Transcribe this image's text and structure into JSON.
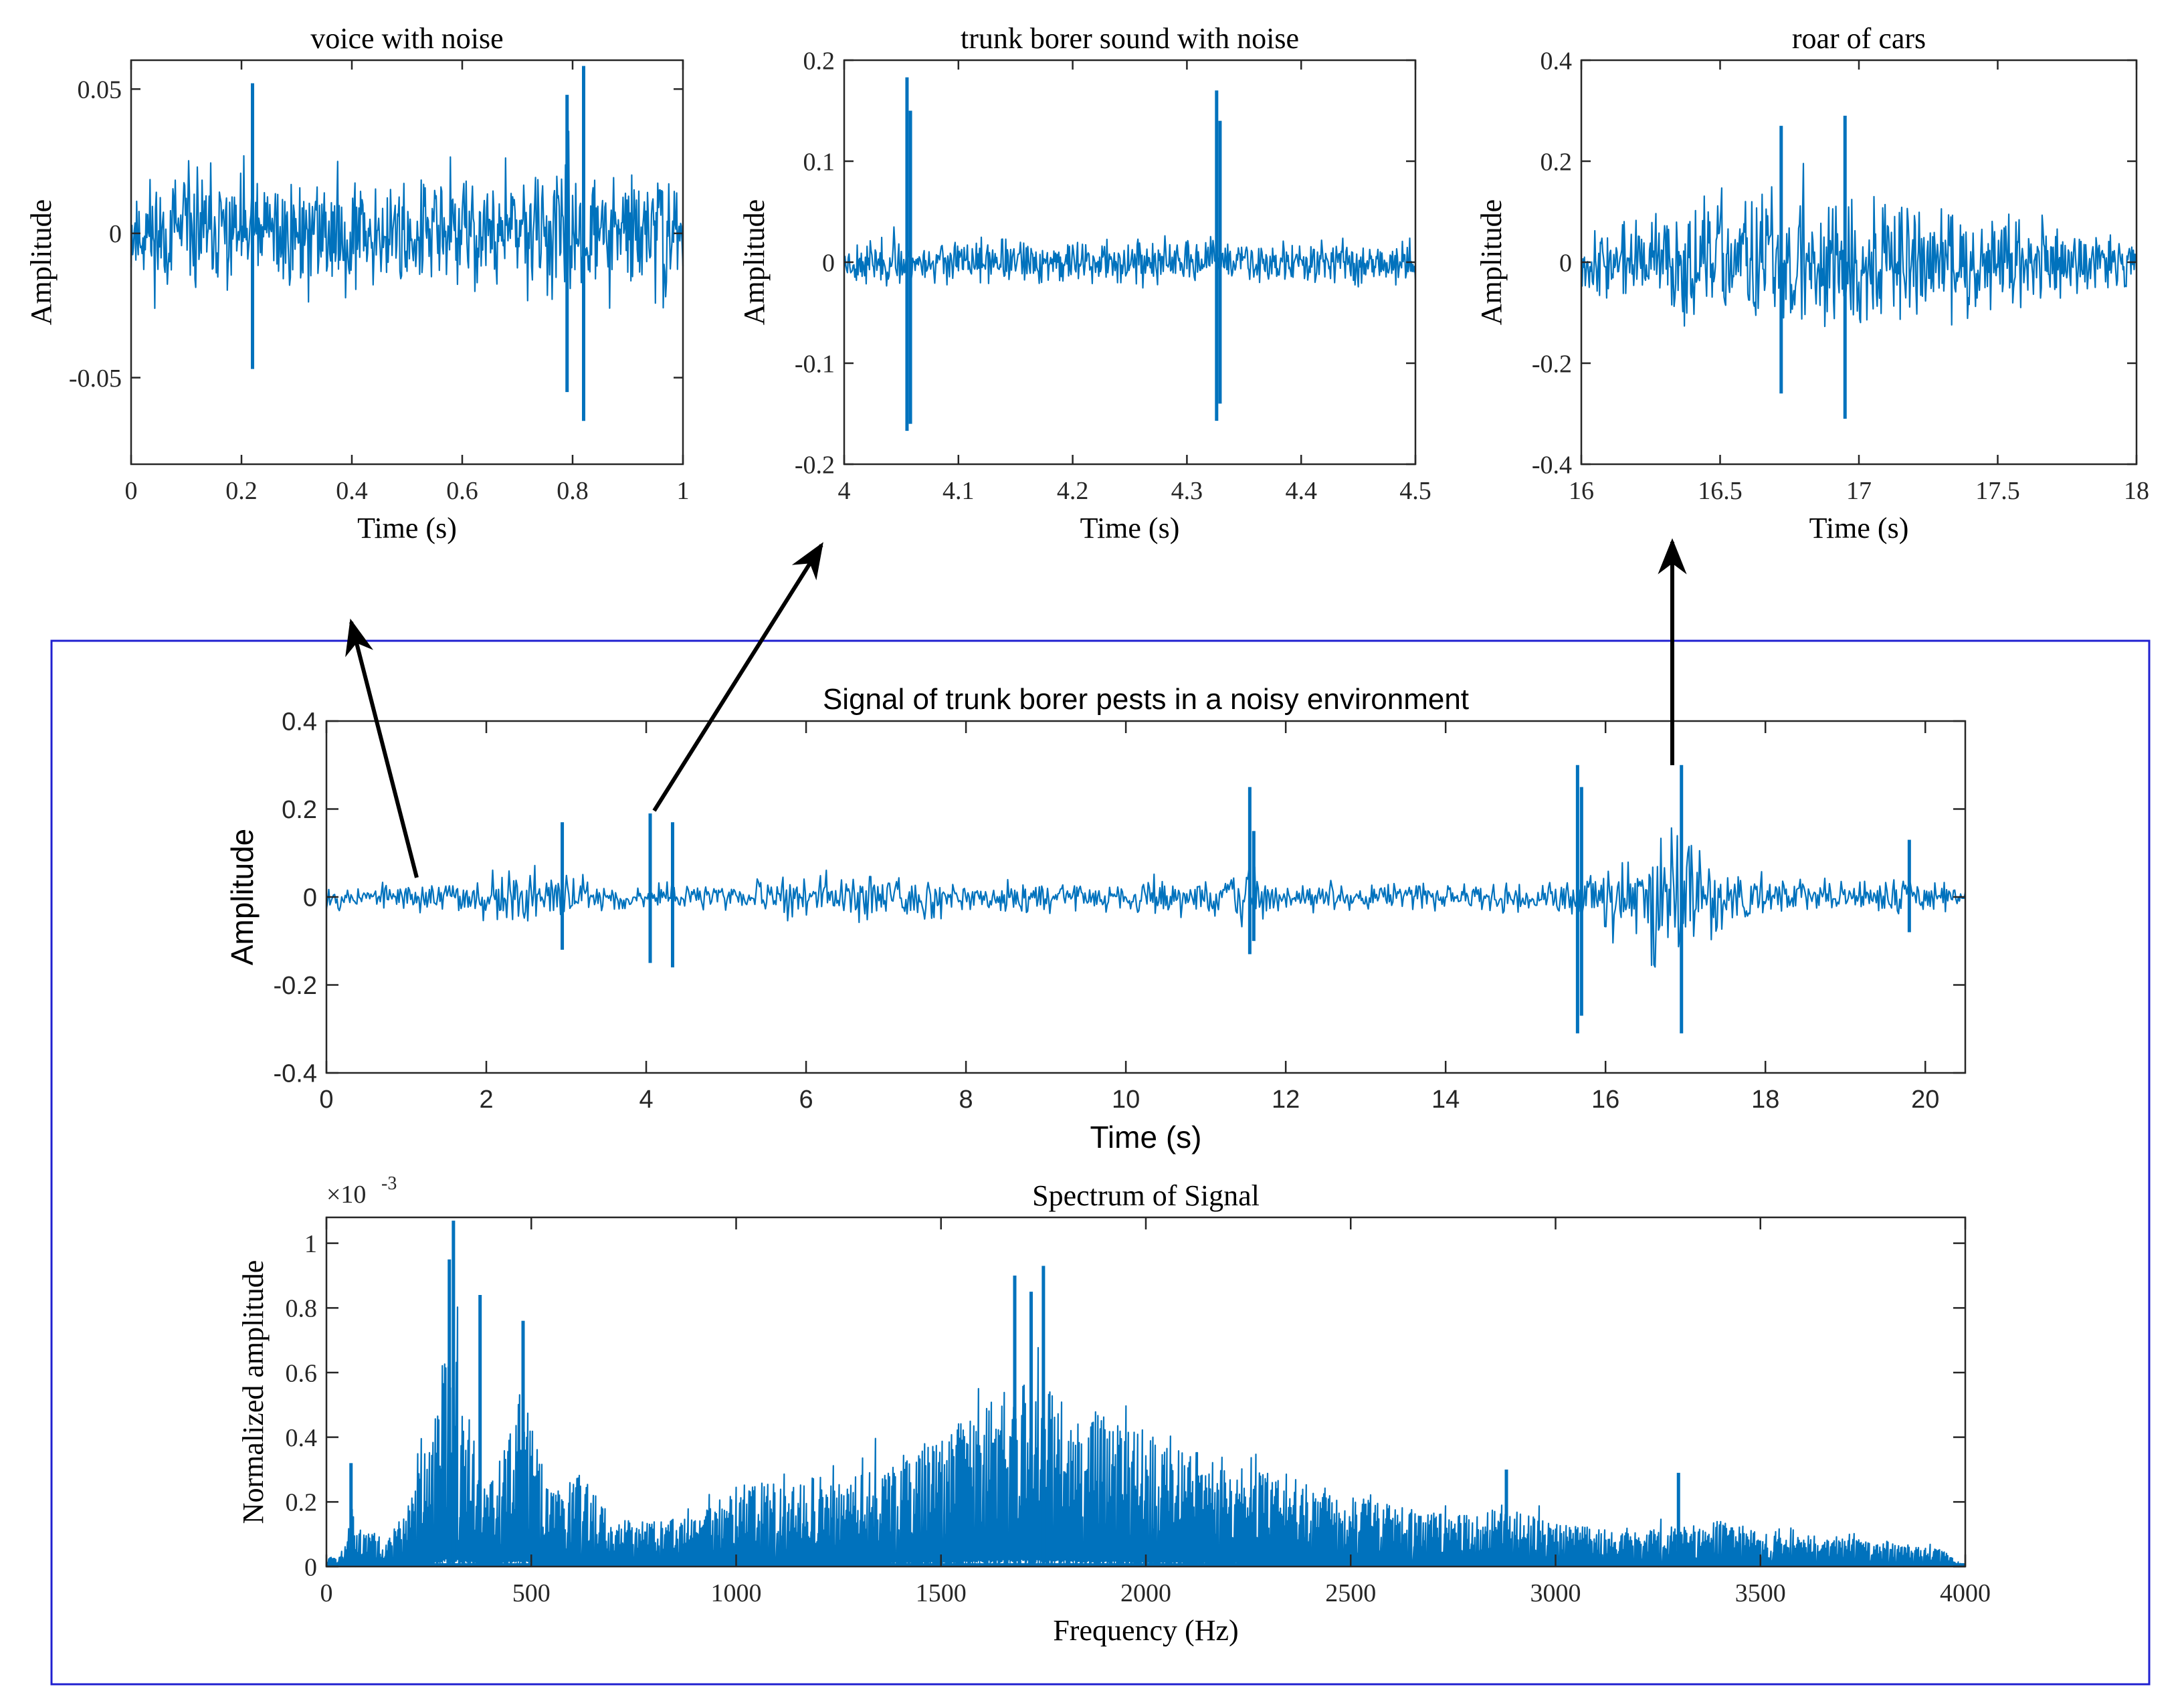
{
  "figure": {
    "colors": {
      "signal": "#0072BD",
      "axis": "#262626",
      "frame": "#2020D0",
      "arrow": "#000000",
      "background": "#FFFFFF"
    }
  },
  "chart_data": [
    {
      "id": "voice",
      "type": "line",
      "title": "voice with noise",
      "xlabel": "Time (s)",
      "ylabel": "Amplitude",
      "xlim": [
        0,
        1
      ],
      "ylim": [
        -0.08,
        0.06
      ],
      "xticks": [
        0,
        0.2,
        0.4,
        0.6,
        0.8,
        1
      ],
      "xticklabels": [
        "0",
        "0.2",
        "0.4",
        "0.6",
        "0.8",
        "1"
      ],
      "yticks": [
        -0.05,
        0,
        0.05
      ],
      "yticklabels": [
        "-0.05",
        "0",
        "0.05"
      ],
      "series": [
        {
          "name": "voice with noise",
          "kind": "noise-envelope",
          "seed": 11,
          "n": 700,
          "envelope": {
            "x": [
              0,
              0.2,
              0.4,
              0.6,
              0.8,
              1
            ],
            "y": [
              0.028,
              0.03,
              0.026,
              0.028,
              0.031,
              0.028
            ]
          },
          "spikes": [
            {
              "x": 0.82,
              "max": 0.058,
              "min": -0.065
            },
            {
              "x": 0.22,
              "max": 0.052,
              "min": -0.047
            },
            {
              "x": 0.79,
              "max": 0.048,
              "min": -0.055
            }
          ]
        }
      ]
    },
    {
      "id": "trunk",
      "type": "line",
      "title": "trunk borer sound with noise",
      "xlabel": "Time (s)",
      "ylabel": "Amplitude",
      "xlim": [
        4,
        4.5
      ],
      "ylim": [
        -0.2,
        0.2
      ],
      "xticks": [
        4,
        4.1,
        4.2,
        4.3,
        4.4,
        4.5
      ],
      "xticklabels": [
        "4",
        "4.1",
        "4.2",
        "4.3",
        "4.4",
        "4.5"
      ],
      "yticks": [
        -0.2,
        -0.1,
        0,
        0.1,
        0.2
      ],
      "yticklabels": [
        "-0.2",
        "-0.1",
        "0",
        "0.1",
        "0.2"
      ],
      "series": [
        {
          "name": "trunk borer sound with noise",
          "kind": "noise-envelope",
          "seed": 23,
          "n": 700,
          "envelope": {
            "x": [
              4,
              4.5
            ],
            "y": [
              0.03,
              0.03
            ]
          },
          "spikes": [
            {
              "x": 4.055,
              "max": 0.183,
              "min": -0.167
            },
            {
              "x": 4.058,
              "max": 0.15,
              "min": -0.16
            },
            {
              "x": 4.326,
              "max": 0.17,
              "min": -0.157
            },
            {
              "x": 4.329,
              "max": 0.14,
              "min": -0.14
            }
          ]
        }
      ]
    },
    {
      "id": "cars",
      "type": "line",
      "title": "roar of cars",
      "xlabel": "Time (s)",
      "ylabel": "Amplitude",
      "xlim": [
        16,
        18
      ],
      "ylim": [
        -0.4,
        0.4
      ],
      "xticks": [
        16,
        16.5,
        17,
        17.5,
        18
      ],
      "xticklabels": [
        "16",
        "16.5",
        "17",
        "17.5",
        "18"
      ],
      "yticks": [
        -0.4,
        -0.2,
        0,
        0.2,
        0.4
      ],
      "yticklabels": [
        "-0.4",
        "-0.2",
        "0",
        "0.2",
        "0.4"
      ],
      "series": [
        {
          "name": "roar of cars",
          "kind": "noise-envelope",
          "seed": 37,
          "n": 700,
          "envelope": {
            "x": [
              16,
              16.4,
              16.9,
              17.4,
              18
            ],
            "y": [
              0.08,
              0.16,
              0.21,
              0.14,
              0.07
            ]
          },
          "spikes": [
            {
              "x": 16.95,
              "max": 0.29,
              "min": -0.31
            },
            {
              "x": 16.72,
              "max": 0.27,
              "min": -0.26
            }
          ]
        }
      ]
    },
    {
      "id": "signal",
      "type": "line",
      "title": "Signal of trunk borer pests in a noisy environment",
      "xlabel": "Time (s)",
      "ylabel": "Amplitude",
      "xlim": [
        0,
        20.5
      ],
      "ylim": [
        -0.4,
        0.4
      ],
      "xticks": [
        0,
        2,
        4,
        6,
        8,
        10,
        12,
        14,
        16,
        18,
        20
      ],
      "xticklabels": [
        "0",
        "2",
        "4",
        "6",
        "8",
        "10",
        "12",
        "14",
        "16",
        "18",
        "20"
      ],
      "yticks": [
        -0.4,
        -0.2,
        0,
        0.2,
        0.4
      ],
      "yticklabels": [
        "-0.4",
        "-0.2",
        "0",
        "0.2",
        "0.4"
      ],
      "series": [
        {
          "name": "Signal of trunk borer pests in a noisy environment",
          "kind": "noise-envelope",
          "seed": 53,
          "n": 1400,
          "envelope": {
            "x": [
              0,
              1,
              2,
              2.5,
              3,
              3.5,
              4,
              5,
              6,
              7,
              8,
              9,
              10,
              11,
              11.5,
              12,
              13,
              14,
              15,
              15.6,
              16,
              16.6,
              17,
              17.5,
              18,
              19,
              19.8,
              20.5
            ],
            "y": [
              0.04,
              0.04,
              0.07,
              0.1,
              0.09,
              0.05,
              0.04,
              0.04,
              0.07,
              0.09,
              0.04,
              0.04,
              0.05,
              0.07,
              0.09,
              0.05,
              0.04,
              0.04,
              0.04,
              0.05,
              0.12,
              0.2,
              0.21,
              0.14,
              0.07,
              0.05,
              0.05,
              0.04
            ]
          },
          "spikes": [
            {
              "x": 4.05,
              "max": 0.19,
              "min": -0.15
            },
            {
              "x": 4.33,
              "max": 0.17,
              "min": -0.16
            },
            {
              "x": 2.95,
              "max": 0.17,
              "min": -0.12
            },
            {
              "x": 11.55,
              "max": 0.25,
              "min": -0.13
            },
            {
              "x": 11.6,
              "max": 0.15,
              "min": -0.1
            },
            {
              "x": 15.65,
              "max": 0.3,
              "min": -0.31
            },
            {
              "x": 15.7,
              "max": 0.25,
              "min": -0.27
            },
            {
              "x": 16.95,
              "max": 0.3,
              "min": -0.31
            },
            {
              "x": 19.8,
              "max": 0.13,
              "min": -0.08
            }
          ]
        }
      ]
    },
    {
      "id": "spectrum",
      "type": "line",
      "title": "Spectrum of Signal",
      "xlabel": "Frequency (Hz)",
      "ylabel": "Normalized amplitude",
      "yexponent": "×10",
      "yexponent_power": "-3",
      "xlim": [
        0,
        4000
      ],
      "ylim": [
        0,
        1.08
      ],
      "xticks": [
        0,
        500,
        1000,
        1500,
        2000,
        2500,
        3000,
        3500,
        4000
      ],
      "xticklabels": [
        "0",
        "500",
        "1000",
        "1500",
        "2000",
        "2500",
        "3000",
        "3500",
        "4000"
      ],
      "yticks": [
        0,
        0.2,
        0.4,
        0.6,
        0.8,
        1
      ],
      "yticklabels": [
        "0",
        "0.2",
        "0.4",
        "0.6",
        "0.8",
        "1"
      ],
      "series": [
        {
          "name": "Spectrum of Signal",
          "kind": "spectrum",
          "seed": 71,
          "n": 1400,
          "envelope": {
            "x": [
              0,
              40,
              60,
              80,
              150,
              200,
              250,
              300,
              330,
              380,
              420,
              470,
              500,
              550,
              620,
              700,
              800,
              900,
              1000,
              1100,
              1300,
              1500,
              1600,
              1700,
              1750,
              1850,
              2000,
              2200,
              2400,
              2600,
              2800,
              2900,
              3000,
              3200,
              3400,
              3600,
              3800,
              3950,
              4000
            ],
            "y": [
              0.02,
              0.05,
              0.2,
              0.12,
              0.08,
              0.2,
              0.4,
              0.75,
              0.6,
              0.25,
              0.3,
              0.55,
              0.45,
              0.25,
              0.3,
              0.14,
              0.15,
              0.15,
              0.25,
              0.26,
              0.3,
              0.4,
              0.5,
              0.58,
              0.55,
              0.5,
              0.4,
              0.33,
              0.26,
              0.19,
              0.17,
              0.18,
              0.13,
              0.11,
              0.14,
              0.1,
              0.08,
              0.05,
              0.0
            ]
          },
          "spikes": [
            {
              "x": 310,
              "max": 1.07
            },
            {
              "x": 300,
              "max": 0.95
            },
            {
              "x": 480,
              "max": 0.76
            },
            {
              "x": 375,
              "max": 0.84
            },
            {
              "x": 1680,
              "max": 0.9
            },
            {
              "x": 1750,
              "max": 0.93
            },
            {
              "x": 1720,
              "max": 0.85
            },
            {
              "x": 60,
              "max": 0.32
            },
            {
              "x": 2880,
              "max": 0.3
            },
            {
              "x": 3300,
              "max": 0.29
            }
          ]
        }
      ]
    }
  ]
}
